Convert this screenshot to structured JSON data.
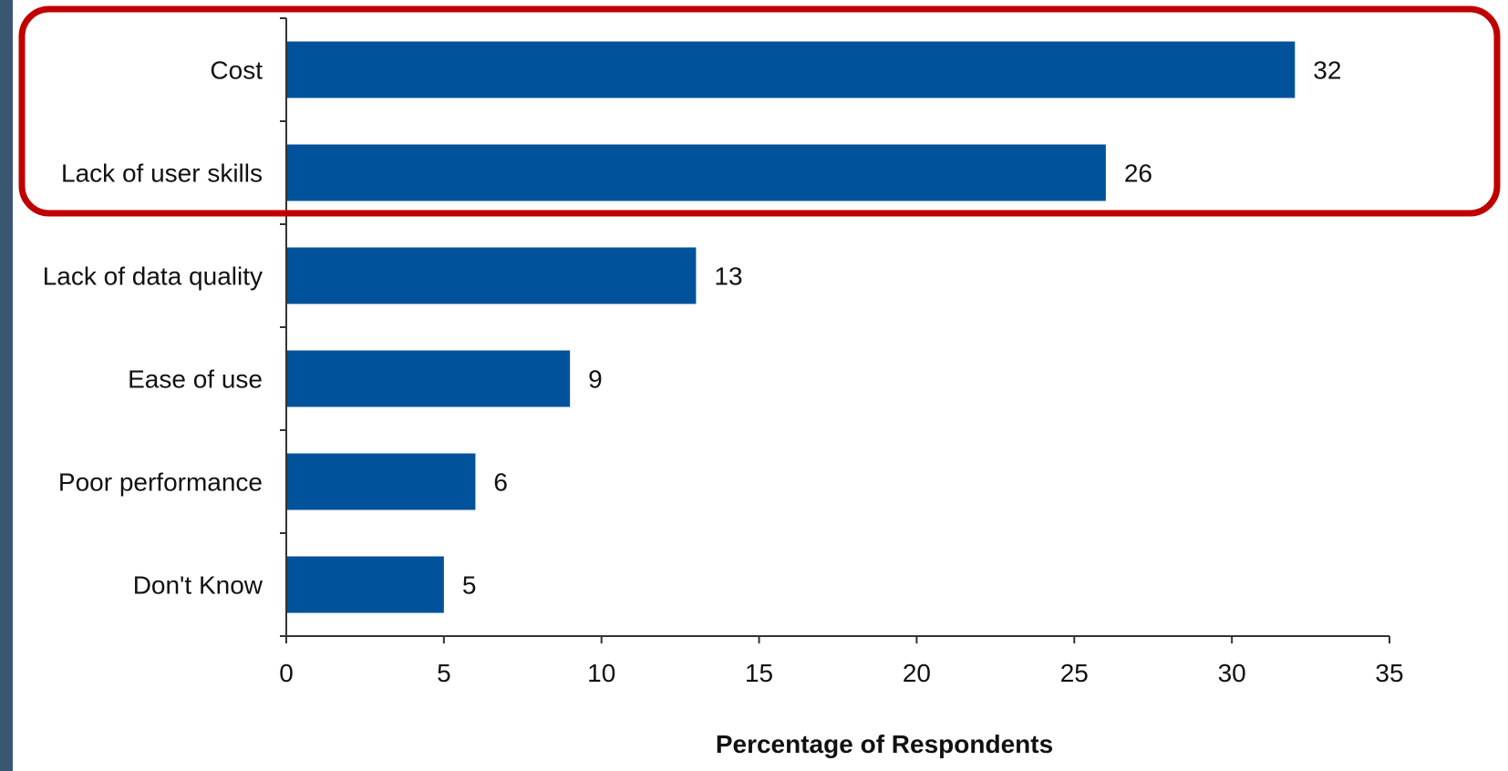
{
  "chart_data": {
    "type": "bar",
    "orientation": "horizontal",
    "categories": [
      "Cost",
      "Lack of user skills",
      "Lack of data quality",
      "Ease of use",
      "Poor performance",
      "Don't Know"
    ],
    "values": [
      32,
      26,
      13,
      9,
      6,
      5
    ],
    "data_labels": [
      "32",
      "26",
      "13",
      "9",
      "6",
      "5"
    ],
    "xlabel": "Percentage of Respondents",
    "ylabel": "",
    "xlim": [
      0,
      35
    ],
    "xticks": [
      0,
      5,
      10,
      15,
      20,
      25,
      30,
      35
    ],
    "grid": false,
    "bar_color": "#00529b",
    "highlight": {
      "categories": [
        "Cost",
        "Lack of user skills"
      ],
      "color": "#c00000"
    }
  },
  "colors": {
    "frame": "#3b5670",
    "background": "#ffffff",
    "bar": "#00529b",
    "highlight_border": "#c00000"
  }
}
